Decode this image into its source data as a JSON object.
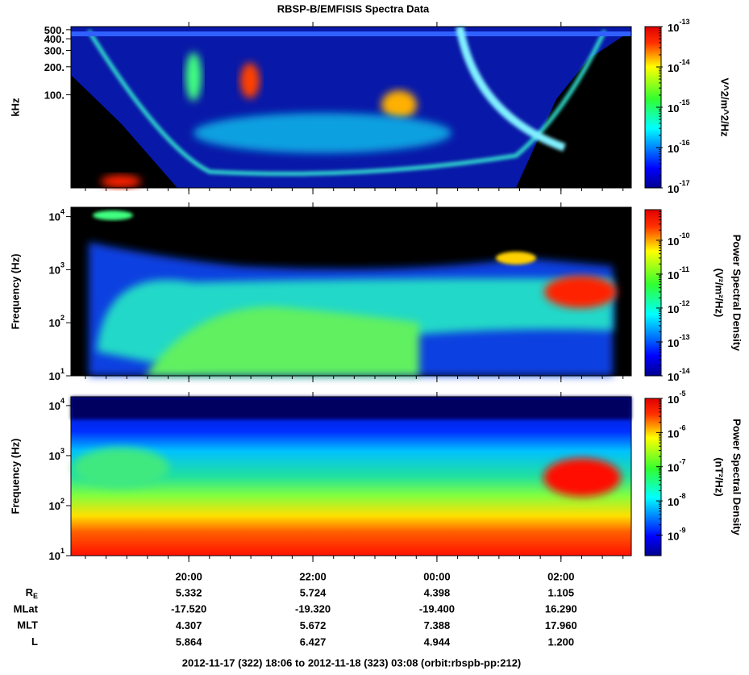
{
  "title": "RBSP-B/EMFISIS  Spectra Data",
  "x_axis": {
    "xlim": [
      "2012-11-17T18:06",
      "2012-11-18T03:08"
    ],
    "xticks": [
      {
        "value": "2012-11-17T20:00",
        "label": "20:00"
      },
      {
        "value": "2012-11-17T22:00",
        "label": "22:00"
      },
      {
        "value": "2012-11-18T00:00",
        "label": "00:00"
      },
      {
        "value": "2012-11-18T02:00",
        "label": "02:00"
      }
    ]
  },
  "chart_data": [
    {
      "type": "heatmap",
      "ylabel": "kHz",
      "yscale": "log",
      "ylim": [
        10,
        540
      ],
      "yticks": [
        {
          "value": 100,
          "label": "100."
        },
        {
          "value": 200,
          "label": "200."
        },
        {
          "value": 300,
          "label": "300."
        },
        {
          "value": 400,
          "label": "400."
        },
        {
          "value": 500,
          "label": "500."
        }
      ],
      "colorbar_label": [
        "V^2/m^2/Hz"
      ],
      "cscale": "log",
      "clim": [
        1e-17,
        1e-13
      ],
      "cticks": [
        {
          "value": 1e-17,
          "label": "10",
          "exp": "-17"
        },
        {
          "value": 1e-16,
          "label": "10",
          "exp": "-16"
        },
        {
          "value": 1e-15,
          "label": "10",
          "exp": "-15"
        },
        {
          "value": 1e-14,
          "label": "10",
          "exp": "-14"
        },
        {
          "value": 1e-13,
          "label": "10",
          "exp": "-13"
        }
      ]
    },
    {
      "type": "heatmap",
      "ylabel": "Frequency (Hz)",
      "yscale": "log",
      "ylim": [
        10,
        15000
      ],
      "yticks": [
        {
          "value": 10,
          "label": "10",
          "exp": "1"
        },
        {
          "value": 100,
          "label": "10",
          "exp": "2"
        },
        {
          "value": 1000,
          "label": "10",
          "exp": "3"
        },
        {
          "value": 10000,
          "label": "10",
          "exp": "4"
        }
      ],
      "colorbar_label": [
        "Power Spectral Density",
        "(V²/m²/Hz)"
      ],
      "cscale": "log",
      "clim": [
        1e-14,
        8e-10
      ],
      "cticks": [
        {
          "value": 1e-14,
          "label": "10",
          "exp": "-14"
        },
        {
          "value": 1e-13,
          "label": "10",
          "exp": "-13"
        },
        {
          "value": 1e-12,
          "label": "10",
          "exp": "-12"
        },
        {
          "value": 1e-11,
          "label": "10",
          "exp": "-11"
        },
        {
          "value": 1e-10,
          "label": "10",
          "exp": "-10"
        }
      ]
    },
    {
      "type": "heatmap",
      "ylabel": "Frequency (Hz)",
      "yscale": "log",
      "ylim": [
        10,
        15000
      ],
      "yticks": [
        {
          "value": 10,
          "label": "10",
          "exp": "1"
        },
        {
          "value": 100,
          "label": "10",
          "exp": "2"
        },
        {
          "value": 1000,
          "label": "10",
          "exp": "3"
        },
        {
          "value": 10000,
          "label": "10",
          "exp": "4"
        }
      ],
      "colorbar_label": [
        "Power Spectral Density",
        "(nT²/Hz)"
      ],
      "cscale": "log",
      "clim": [
        2.5e-10,
        1e-05
      ],
      "cticks": [
        {
          "value": 1e-09,
          "label": "10",
          "exp": "-9"
        },
        {
          "value": 1e-08,
          "label": "10",
          "exp": "-8"
        },
        {
          "value": 1e-07,
          "label": "10",
          "exp": "-7"
        },
        {
          "value": 1e-06,
          "label": "10",
          "exp": "-6"
        },
        {
          "value": 1e-05,
          "label": "10",
          "exp": "-5"
        }
      ]
    }
  ],
  "ephemeris": [
    {
      "label": "R",
      "sub": "E",
      "values": [
        "5.332",
        "5.724",
        "4.398",
        "1.105"
      ]
    },
    {
      "label": "MLat",
      "values": [
        "-17.520",
        "-19.320",
        "-19.400",
        "16.290"
      ]
    },
    {
      "label": "MLT",
      "values": [
        "4.307",
        "5.672",
        "7.388",
        "17.960"
      ]
    },
    {
      "label": "L",
      "values": [
        "5.864",
        "6.427",
        "4.944",
        "1.200"
      ]
    }
  ],
  "footer": "2012-11-17 (322) 18:06 to 2012-11-18 (323) 03:08 (orbit:rbspb-pp:212)"
}
